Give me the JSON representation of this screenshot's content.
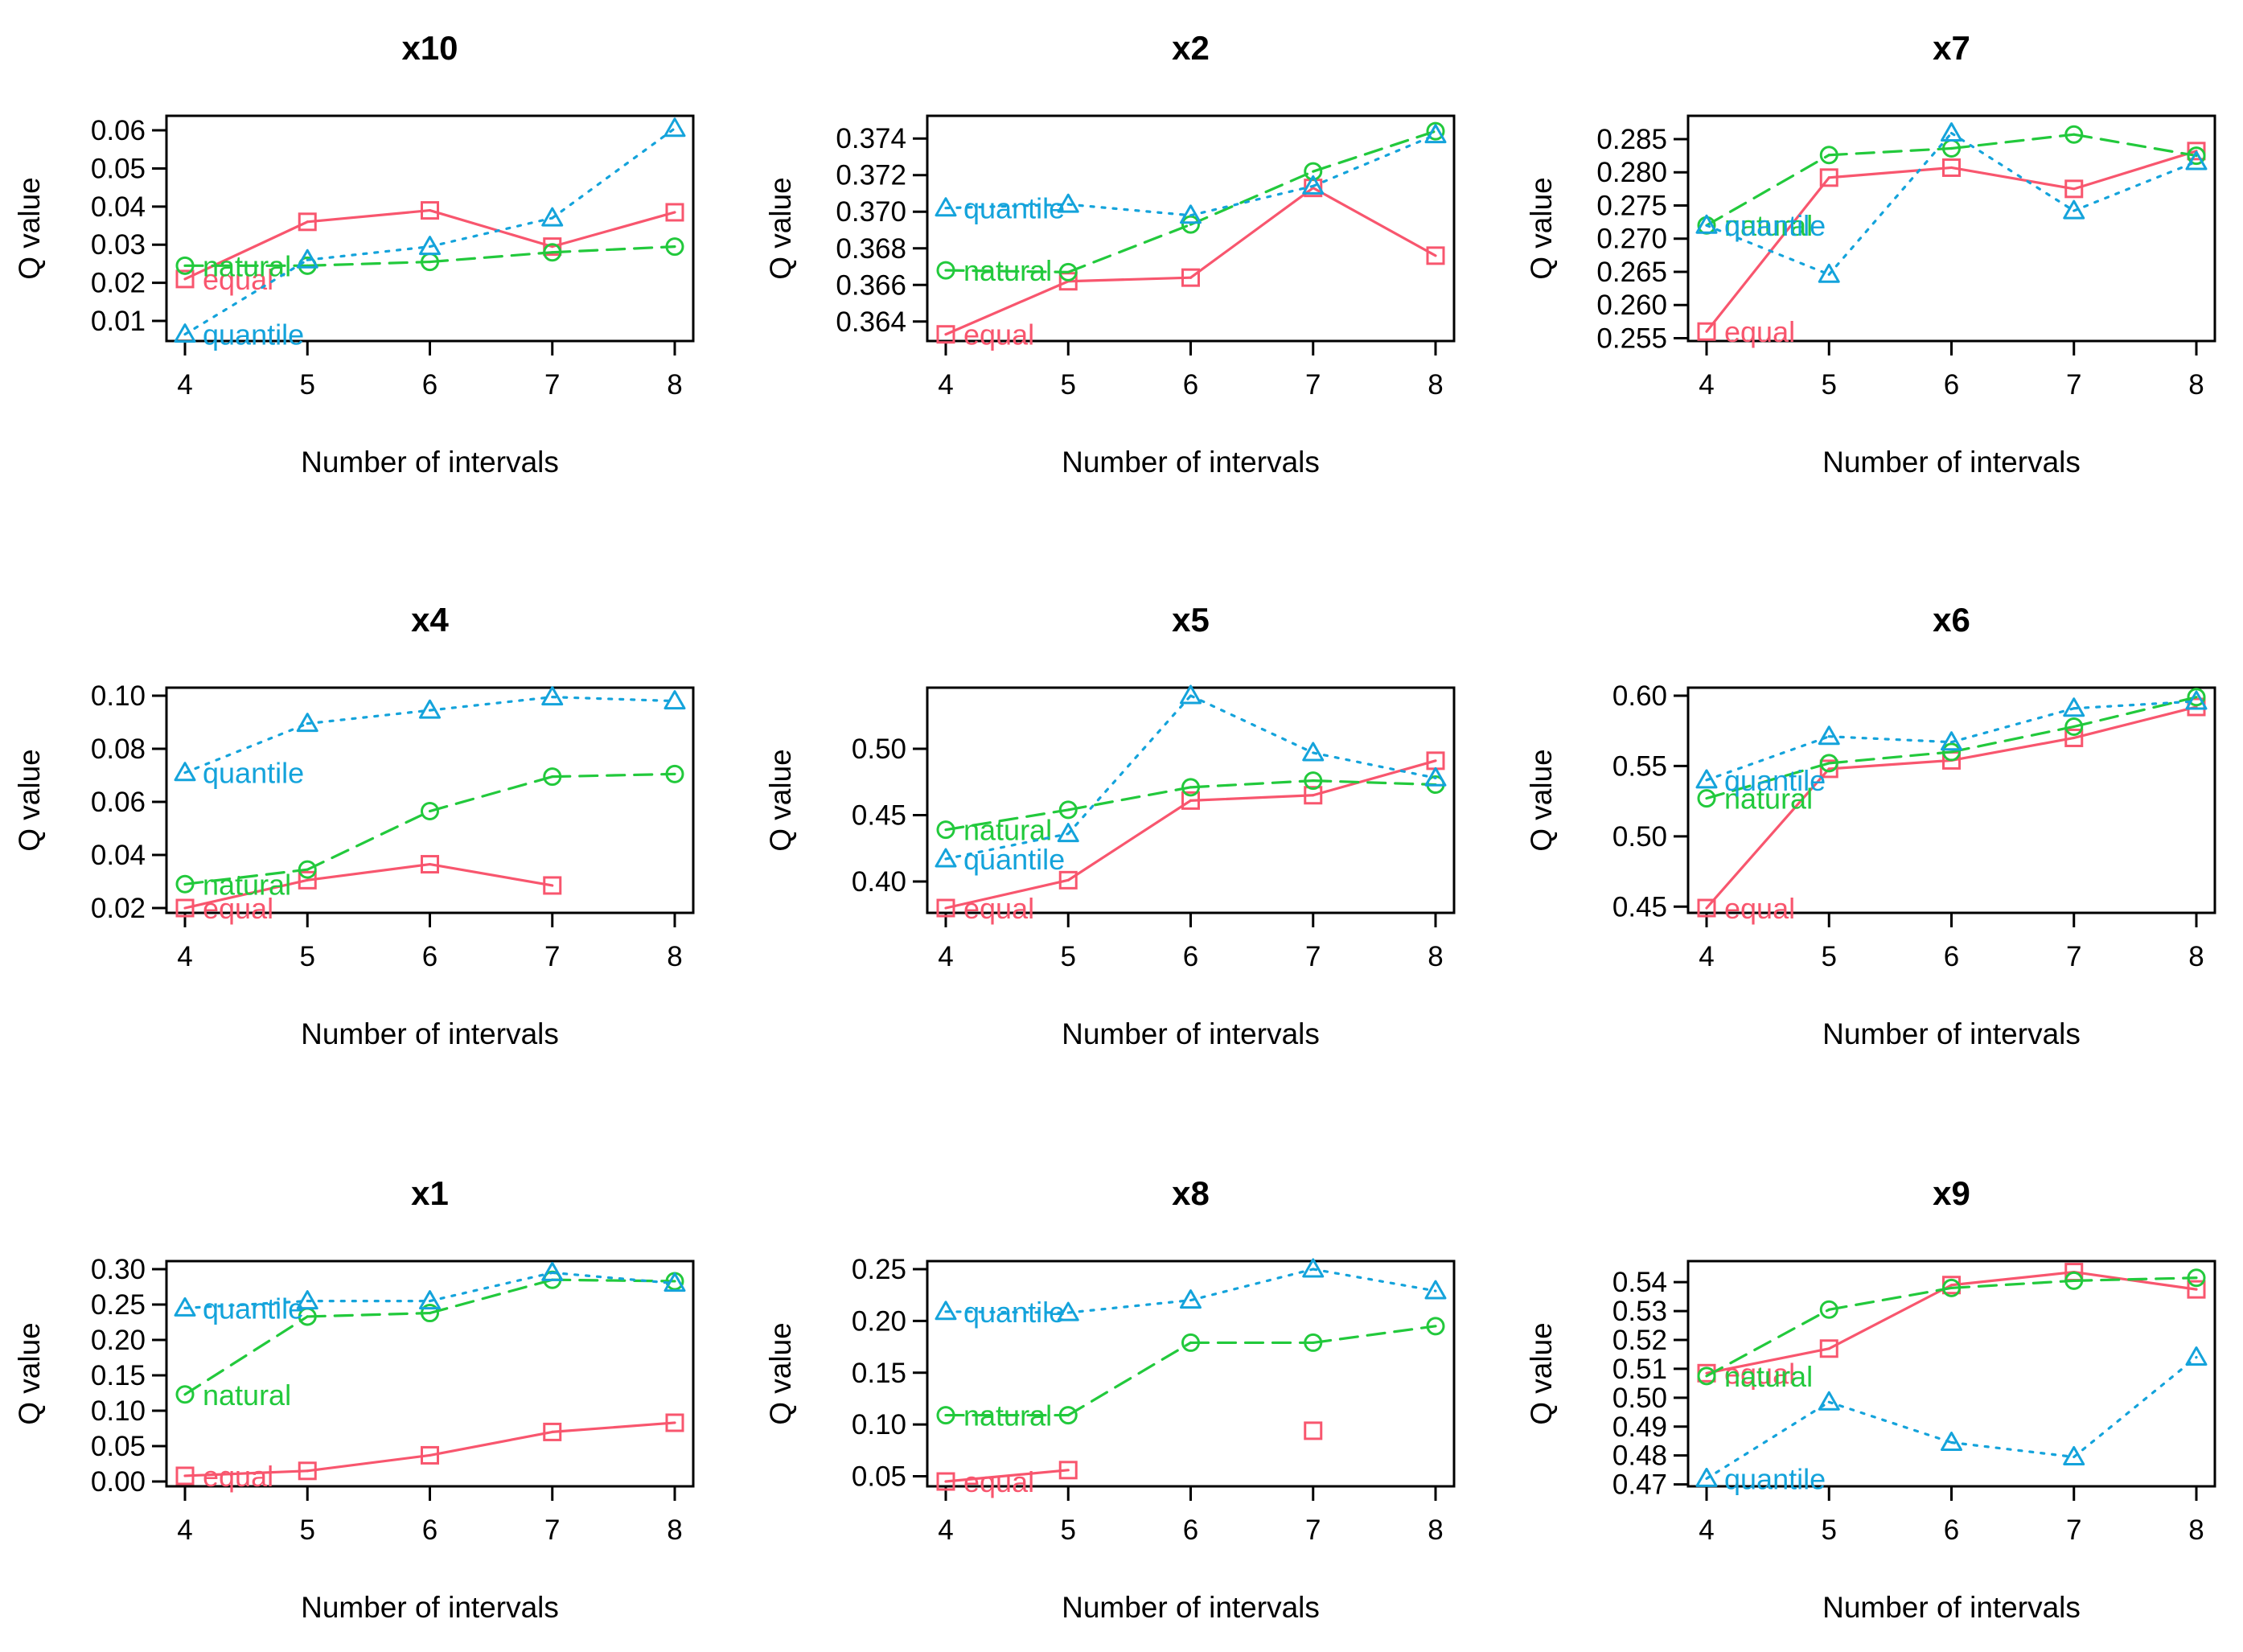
{
  "colors": {
    "equal": "#F8566E",
    "natural": "#22C93C",
    "quantile": "#14A3DB",
    "axis": "#000000"
  },
  "series_names": [
    "equal",
    "natural",
    "quantile"
  ],
  "chart_data": [
    {
      "type": "line",
      "title": "x10",
      "xlabel": "Number of intervals",
      "ylabel": "Q value",
      "x": [
        4,
        5,
        6,
        7,
        8
      ],
      "xlim": [
        4,
        8
      ],
      "ylim": [
        0.006,
        0.0617
      ],
      "yticks": [
        "0.01",
        "0.02",
        "0.03",
        "0.04",
        "0.05",
        "0.06"
      ],
      "xticks": [
        "4",
        "5",
        "6",
        "7",
        "8"
      ],
      "series": [
        {
          "name": "equal",
          "values": [
            0.021,
            0.036,
            0.039,
            0.0295,
            0.0385
          ]
        },
        {
          "name": "natural",
          "values": [
            0.0245,
            0.0245,
            0.0255,
            0.028,
            0.0295
          ]
        },
        {
          "name": "quantile",
          "values": [
            0.0065,
            0.026,
            0.0295,
            0.037,
            0.0605
          ]
        }
      ]
    },
    {
      "type": "line",
      "title": "x2",
      "xlabel": "Number of intervals",
      "ylabel": "Q value",
      "x": [
        4,
        5,
        6,
        7,
        8
      ],
      "xlim": [
        4,
        8
      ],
      "ylim": [
        0.3632,
        0.3748
      ],
      "yticks": [
        "0.364",
        "0.366",
        "0.368",
        "0.370",
        "0.372",
        "0.374"
      ],
      "xticks": [
        "4",
        "5",
        "6",
        "7",
        "8"
      ],
      "series": [
        {
          "name": "equal",
          "values": [
            0.3633,
            0.3662,
            0.3664,
            0.3713,
            0.3676
          ]
        },
        {
          "name": "natural",
          "values": [
            0.3668,
            0.3667,
            0.3693,
            0.3722,
            0.3744
          ]
        },
        {
          "name": "quantile",
          "values": [
            0.3702,
            0.3704,
            0.3698,
            0.3714,
            0.3742
          ]
        }
      ]
    },
    {
      "type": "line",
      "title": "x7",
      "xlabel": "Number of intervals",
      "ylabel": "Q value",
      "x": [
        4,
        5,
        6,
        7,
        8
      ],
      "xlim": [
        4,
        8
      ],
      "ylim": [
        0.2553,
        0.2873
      ],
      "yticks": [
        "0.255",
        "0.260",
        "0.265",
        "0.270",
        "0.275",
        "0.280",
        "0.285"
      ],
      "xticks": [
        "4",
        "5",
        "6",
        "7",
        "8"
      ],
      "series": [
        {
          "name": "equal",
          "values": [
            0.256,
            0.2792,
            0.2807,
            0.2775,
            0.2832
          ]
        },
        {
          "name": "natural",
          "values": [
            0.272,
            0.2826,
            0.2836,
            0.2857,
            0.2825
          ]
        },
        {
          "name": "quantile",
          "values": [
            0.272,
            0.2646,
            0.2859,
            0.2742,
            0.2816
          ]
        }
      ]
    },
    {
      "type": "line",
      "title": "x4",
      "xlabel": "Number of intervals",
      "ylabel": "Q value",
      "x": [
        4,
        5,
        6,
        7,
        8
      ],
      "xlim": [
        4,
        8
      ],
      "ylim": [
        0.02,
        0.1
      ],
      "yticks": [
        "0.02",
        "0.04",
        "0.06",
        "0.08",
        "0.10"
      ],
      "xticks": [
        "4",
        "5",
        "6",
        "7",
        "8"
      ],
      "series": [
        {
          "name": "equal",
          "values": [
            0.02,
            0.0305,
            0.0365,
            0.0285,
            null
          ]
        },
        {
          "name": "natural",
          "values": [
            0.029,
            0.0345,
            0.0565,
            0.0695,
            0.0705
          ]
        },
        {
          "name": "quantile",
          "values": [
            0.071,
            0.0895,
            0.0945,
            0.0995,
            0.098
          ]
        }
      ]
    },
    {
      "type": "line",
      "title": "x5",
      "xlabel": "Number of intervals",
      "ylabel": "Q value",
      "x": [
        4,
        5,
        6,
        7,
        8
      ],
      "xlim": [
        4,
        8
      ],
      "ylim": [
        0.38,
        0.54
      ],
      "yticks": [
        "0.40",
        "0.45",
        "0.50"
      ],
      "xticks": [
        "4",
        "5",
        "6",
        "7",
        "8"
      ],
      "series": [
        {
          "name": "equal",
          "values": [
            0.38,
            0.401,
            0.461,
            0.465,
            0.491
          ]
        },
        {
          "name": "natural",
          "values": [
            0.439,
            0.454,
            0.471,
            0.476,
            0.473
          ]
        },
        {
          "name": "quantile",
          "values": [
            0.417,
            0.436,
            0.54,
            0.497,
            0.478
          ]
        }
      ]
    },
    {
      "type": "line",
      "title": "x6",
      "xlabel": "Number of intervals",
      "ylabel": "Q value",
      "x": [
        4,
        5,
        6,
        7,
        8
      ],
      "xlim": [
        4,
        8
      ],
      "ylim": [
        0.449,
        0.6
      ],
      "yticks": [
        "0.45",
        "0.50",
        "0.55",
        "0.60"
      ],
      "xticks": [
        "4",
        "5",
        "6",
        "7",
        "8"
      ],
      "series": [
        {
          "name": "equal",
          "values": [
            0.449,
            0.548,
            0.554,
            0.57,
            0.592
          ]
        },
        {
          "name": "natural",
          "values": [
            0.527,
            0.552,
            0.56,
            0.578,
            0.599
          ]
        },
        {
          "name": "quantile",
          "values": [
            0.54,
            0.571,
            0.567,
            0.591,
            0.596
          ]
        }
      ]
    },
    {
      "type": "line",
      "title": "x1",
      "xlabel": "Number of intervals",
      "ylabel": "Q value",
      "x": [
        4,
        5,
        6,
        7,
        8
      ],
      "xlim": [
        4,
        8
      ],
      "ylim": [
        0.0,
        0.3
      ],
      "yticks": [
        "0.00",
        "0.05",
        "0.10",
        "0.15",
        "0.20",
        "0.25",
        "0.30"
      ],
      "xticks": [
        "4",
        "5",
        "6",
        "7",
        "8"
      ],
      "series": [
        {
          "name": "equal",
          "values": [
            0.008,
            0.015,
            0.037,
            0.07,
            0.083
          ]
        },
        {
          "name": "natural",
          "values": [
            0.123,
            0.233,
            0.238,
            0.285,
            0.283
          ]
        },
        {
          "name": "quantile",
          "values": [
            0.245,
            0.255,
            0.255,
            0.295,
            0.28
          ]
        }
      ]
    },
    {
      "type": "line",
      "title": "x8",
      "xlabel": "Number of intervals",
      "ylabel": "Q value",
      "x": [
        4,
        5,
        6,
        7,
        8
      ],
      "xlim": [
        4,
        8
      ],
      "ylim": [
        0.045,
        0.25
      ],
      "yticks": [
        "0.05",
        "0.10",
        "0.15",
        "0.20",
        "0.25"
      ],
      "xticks": [
        "4",
        "5",
        "6",
        "7",
        "8"
      ],
      "series": [
        {
          "name": "equal",
          "values": [
            0.045,
            0.056,
            null,
            0.094,
            null
          ]
        },
        {
          "name": "natural",
          "values": [
            0.109,
            0.109,
            0.179,
            0.179,
            0.195
          ]
        },
        {
          "name": "quantile",
          "values": [
            0.209,
            0.208,
            0.22,
            0.25,
            0.229
          ]
        }
      ]
    },
    {
      "type": "line",
      "title": "x9",
      "xlabel": "Number of intervals",
      "ylabel": "Q value",
      "x": [
        4,
        5,
        6,
        7,
        8
      ],
      "xlim": [
        4,
        8
      ],
      "ylim": [
        0.471,
        0.5445
      ],
      "yticks": [
        "0.47",
        "0.48",
        "0.49",
        "0.50",
        "0.51",
        "0.52",
        "0.53",
        "0.54"
      ],
      "xticks": [
        "4",
        "5",
        "6",
        "7",
        "8"
      ],
      "series": [
        {
          "name": "equal",
          "values": [
            0.5085,
            0.517,
            0.539,
            0.5435,
            0.5375
          ]
        },
        {
          "name": "natural",
          "values": [
            0.5075,
            0.5305,
            0.538,
            0.5405,
            0.5415
          ]
        },
        {
          "name": "quantile",
          "values": [
            0.472,
            0.4985,
            0.4845,
            0.4795,
            0.514
          ]
        }
      ]
    }
  ]
}
